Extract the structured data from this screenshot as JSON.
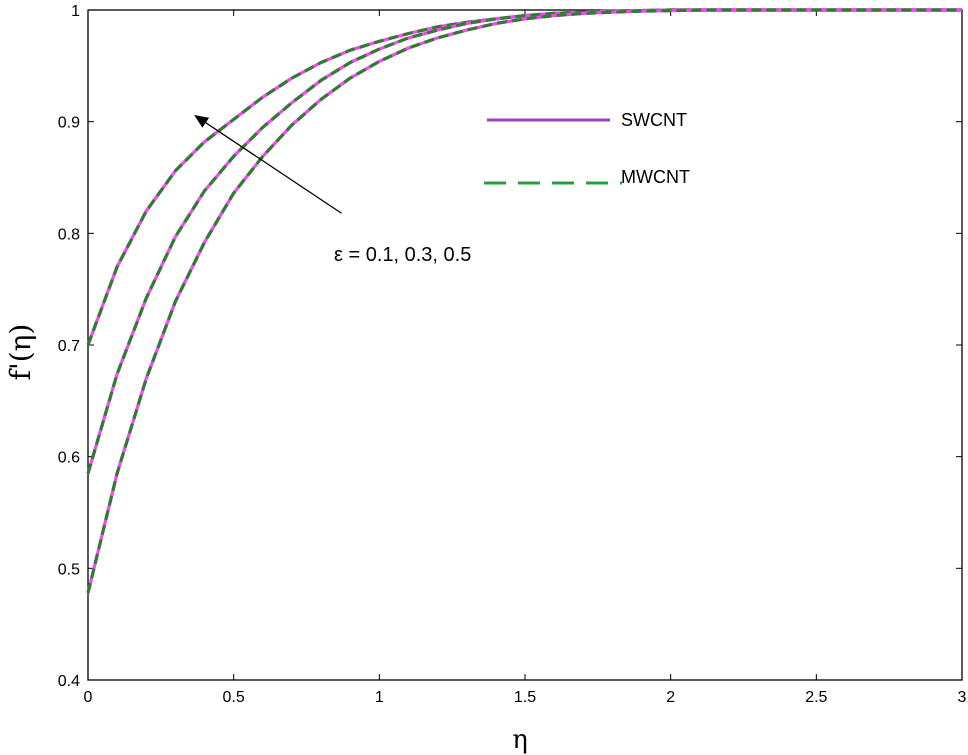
{
  "chart_data": {
    "type": "line",
    "title": "",
    "xlabel": "η",
    "ylabel": "f'(η)",
    "xlim": [
      0,
      3
    ],
    "ylim": [
      0.4,
      1
    ],
    "xticks": [
      0,
      0.5,
      1,
      1.5,
      2,
      2.5,
      3
    ],
    "yticks": [
      0.4,
      0.5,
      0.6,
      0.7,
      0.8,
      0.9,
      1
    ],
    "xtick_labels": [
      "0",
      "0.5",
      "1",
      "1.5",
      "2",
      "2.5",
      "3"
    ],
    "ytick_labels": [
      "0.4",
      "0.5",
      "0.6",
      "0.7",
      "0.8",
      "0.9",
      "1"
    ],
    "grid": false,
    "legend_position": "upper-center",
    "legend": [
      {
        "label": "SWCNT",
        "color": "#a040c0",
        "style": "solid"
      },
      {
        "label": "MWCNT",
        "color": "#22a33a",
        "style": "dashed"
      }
    ],
    "x": [
      0,
      0.1,
      0.2,
      0.3,
      0.4,
      0.5,
      0.6,
      0.7,
      0.8,
      0.9,
      1.0,
      1.1,
      1.2,
      1.3,
      1.4,
      1.5,
      1.6,
      1.7,
      1.8,
      1.9,
      2.0,
      2.1,
      2.2,
      2.3,
      2.4,
      2.5,
      2.6,
      2.7,
      2.8,
      2.9,
      3.0
    ],
    "series": [
      {
        "values": [
          0.7,
          0.77,
          0.82,
          0.856,
          0.882,
          0.902,
          0.922,
          0.939,
          0.953,
          0.964,
          0.972,
          0.979,
          0.985,
          0.989,
          0.992,
          0.995,
          0.997,
          0.998,
          0.999,
          0.9995,
          1.0,
          1.0,
          1.0,
          1.0,
          1.0,
          1.0,
          1.0,
          1.0,
          1.0,
          1.0,
          1.0
        ]
      },
      {
        "values": [
          0.585,
          0.674,
          0.742,
          0.797,
          0.838,
          0.869,
          0.895,
          0.917,
          0.937,
          0.953,
          0.965,
          0.975,
          0.982,
          0.988,
          0.992,
          0.995,
          0.997,
          0.998,
          0.999,
          0.9995,
          1.0,
          1.0,
          1.0,
          1.0,
          1.0,
          1.0,
          1.0,
          1.0,
          1.0,
          1.0,
          1.0
        ]
      },
      {
        "values": [
          0.478,
          0.585,
          0.67,
          0.739,
          0.792,
          0.836,
          0.869,
          0.897,
          0.92,
          0.939,
          0.954,
          0.966,
          0.975,
          0.982,
          0.988,
          0.992,
          0.995,
          0.997,
          0.998,
          0.999,
          0.9995,
          1.0,
          1.0,
          1.0,
          1.0,
          1.0,
          1.0,
          1.0,
          1.0,
          1.0,
          1.0
        ]
      }
    ],
    "annotation": {
      "text": "ε = 0.1, 0.3, 0.5",
      "arrow_from": [
        0.87,
        0.818
      ],
      "arrow_to": [
        0.37,
        0.905
      ]
    }
  }
}
